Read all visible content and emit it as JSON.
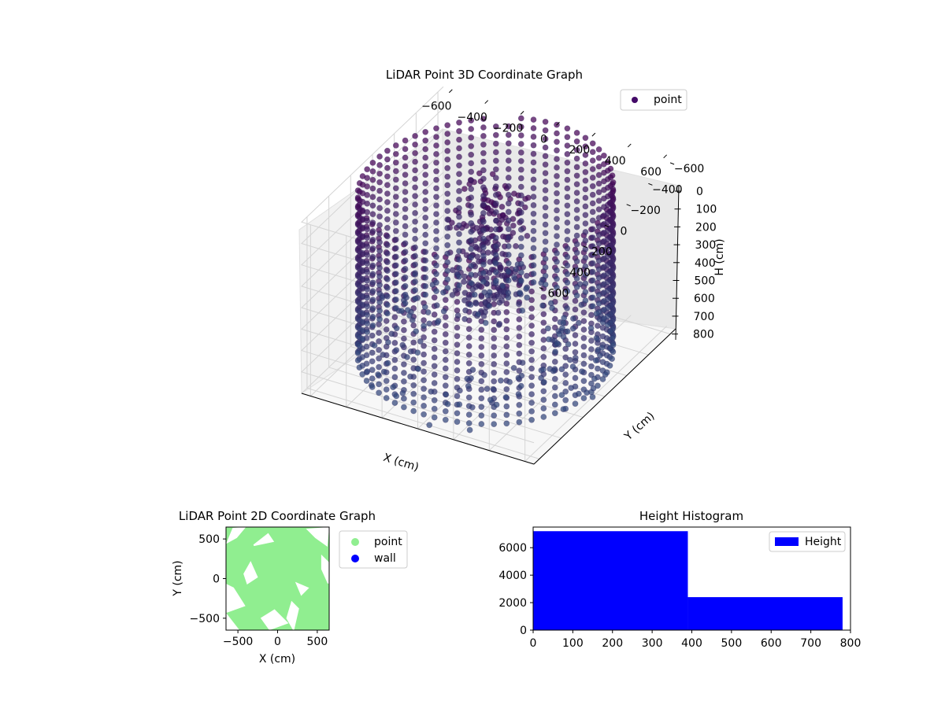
{
  "chart_data": [
    {
      "type": "scatter",
      "title": "LiDAR Point 3D Coordinate Graph",
      "xlabel": "X (cm)",
      "ylabel": "Y (cm)",
      "zlabel": "H (cm)",
      "xlim": [
        -650,
        650
      ],
      "ylim": [
        -650,
        650
      ],
      "zlim": [
        0,
        800
      ],
      "z_inverted": true,
      "x_ticks": [
        "−600",
        "−400",
        "−200",
        "0",
        "200",
        "400",
        "600"
      ],
      "y_ticks": [
        "−600",
        "−400",
        "−200",
        "0",
        "200",
        "400",
        "600"
      ],
      "z_ticks": [
        "0",
        "100",
        "200",
        "300",
        "400",
        "500",
        "600",
        "700",
        "800"
      ],
      "legend": [
        "point"
      ],
      "legend_position": "top-right",
      "colormap": "viridis (dark purple to teal)",
      "grid": true,
      "description_series": "ring wall of radius ~620 cm with heights 0-800 cm, central cluster near origin"
    },
    {
      "type": "scatter",
      "title": "LiDAR Point 2D Coordinate Graph",
      "xlabel": "X (cm)",
      "ylabel": "Y (cm)",
      "xlim": [
        -650,
        650
      ],
      "ylim": [
        -650,
        650
      ],
      "x_ticks": [
        "−500",
        "0",
        "500"
      ],
      "y_ticks": [
        "500",
        "0",
        "−500"
      ],
      "series": [
        {
          "name": "point",
          "color": "#90ee90"
        },
        {
          "name": "wall",
          "color": "#0000ff"
        }
      ],
      "legend_position": "right"
    },
    {
      "type": "bar",
      "title": "Height Histogram",
      "bins": [
        [
          0,
          390
        ],
        [
          390,
          780
        ]
      ],
      "values": [
        7200,
        2400
      ],
      "xlim": [
        0,
        800
      ],
      "ylim": [
        0,
        7500
      ],
      "x_ticks": [
        "0",
        "100",
        "200",
        "300",
        "400",
        "500",
        "600",
        "700",
        "800"
      ],
      "y_ticks": [
        "0",
        "2000",
        "4000",
        "6000"
      ],
      "series": [
        {
          "name": "Height",
          "color": "#0000ff"
        }
      ],
      "legend_position": "top-right"
    }
  ]
}
